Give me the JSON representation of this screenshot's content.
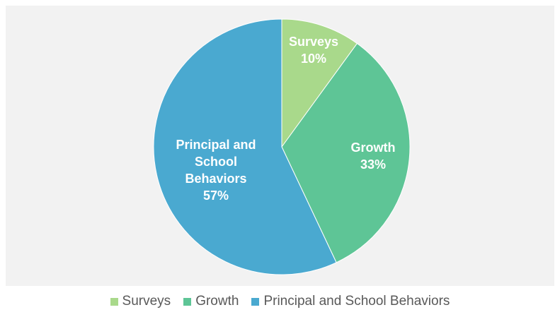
{
  "chart_data": {
    "type": "pie",
    "title": "",
    "slices": [
      {
        "label": "Surveys",
        "value": 10,
        "value_label": "10%",
        "label_lines": [
          "Surveys",
          "10%"
        ],
        "color": "#a9d98b"
      },
      {
        "label": "Growth",
        "value": 33,
        "value_label": "33%",
        "label_lines": [
          "Growth",
          "33%"
        ],
        "color": "#5ec596"
      },
      {
        "label": "Principal and School Behaviors",
        "value": 57,
        "value_label": "57%",
        "label_lines": [
          "Principal and",
          "School",
          "Behaviors",
          "57%"
        ],
        "color": "#4aa9d0"
      }
    ],
    "legend_position": "bottom",
    "background_color": "#f2f2f2"
  },
  "legend": {
    "items": [
      {
        "label": "Surveys",
        "color": "#a9d98b"
      },
      {
        "label": "Growth",
        "color": "#5ec596"
      },
      {
        "label": "Principal and School Behaviors",
        "color": "#4aa9d0"
      }
    ]
  }
}
